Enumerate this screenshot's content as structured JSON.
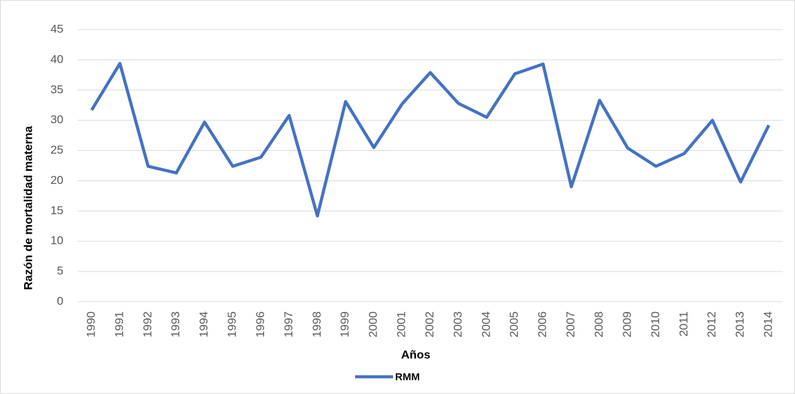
{
  "chart_data": {
    "type": "line",
    "x_label": "Años",
    "y_label": "Razón de mortalidad materna",
    "categories": [
      "1990",
      "1991",
      "1992",
      "1993",
      "1994",
      "1995",
      "1996",
      "1997",
      "1998",
      "1999",
      "2000",
      "2001",
      "2002",
      "2003",
      "2004",
      "2005",
      "2006",
      "2007",
      "2008",
      "2009",
      "2010",
      "2011",
      "2012",
      "2013",
      "2014"
    ],
    "series": [
      {
        "name": "RMM",
        "color": "#4472c4",
        "values": [
          31.7,
          39.4,
          22.4,
          21.3,
          29.7,
          22.4,
          23.9,
          30.8,
          14.2,
          33.1,
          25.5,
          32.7,
          37.9,
          32.8,
          30.5,
          37.7,
          39.3,
          19.0,
          33.3,
          25.4,
          22.4,
          24.5,
          30.0,
          19.8,
          29.2
        ]
      }
    ],
    "ylim": [
      0,
      45
    ],
    "yticks": [
      0,
      5,
      10,
      15,
      20,
      25,
      30,
      35,
      40,
      45
    ],
    "grid": true,
    "legend": "bottom"
  }
}
